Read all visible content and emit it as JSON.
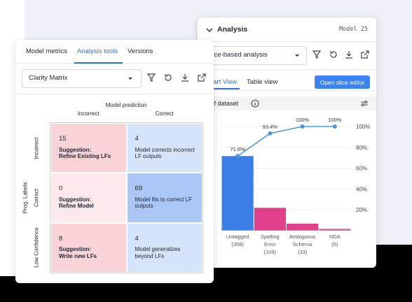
{
  "analysis_panel": {
    "title": "Analysis",
    "model": "Model 25",
    "dropdown": "Slice-based analysis",
    "tabs": [
      "Chart View",
      "Table view"
    ],
    "button": "Open slice editor",
    "metric": "% of dataset"
  },
  "chart_data": {
    "type": "combo",
    "categories": [
      [
        "Untagged",
        "(358)"
      ],
      [
        "Spelling",
        "Error",
        "(109)"
      ],
      [
        "Ambiguous",
        "Schema",
        "(33)"
      ],
      [
        "NDA",
        "(5)"
      ]
    ],
    "series": [
      {
        "type": "bar",
        "values": [
          71.6,
          21.8,
          6.6,
          1
        ],
        "colors": [
          "#3b7fe6",
          "#e03f8c",
          "#e03f8c",
          "#e03f8c"
        ]
      },
      {
        "type": "line",
        "values": [
          71.6,
          93.4,
          100,
          100
        ],
        "value_labels": [
          "71.6%",
          "93.4%",
          "100%",
          "100%"
        ],
        "color": "#4a97dd"
      }
    ],
    "ylim": [
      0,
      100
    ],
    "yticks": [
      {
        "value": 20,
        "label": "20%"
      },
      {
        "value": 40,
        "label": "40%"
      },
      {
        "value": 60,
        "label": "60%"
      },
      {
        "value": 80,
        "label": "80%"
      },
      {
        "value": 100,
        "label": "100%"
      }
    ],
    "grid": true
  },
  "matrix_card": {
    "tabs": [
      "Model metrics",
      "Analysis tools",
      "Versions"
    ],
    "dropdown": "Clarity Matrix",
    "x_title": "Model prediction",
    "columns": [
      "Incorrect",
      "Correct"
    ],
    "y_title": "Prog. Labels",
    "rows": [
      "Incorrect",
      "Correct",
      "Low Confidence"
    ],
    "cells": [
      [
        {
          "count": 15,
          "label": "Suggestion:",
          "text": "Refine Existing LFs"
        },
        {
          "count": 4,
          "text": "Model corrects incorrect LF outputs"
        }
      ],
      [
        {
          "count": 0,
          "label": "Suggestion:",
          "text": "Refine Model"
        },
        {
          "count": 69,
          "text": "Model fits to correct LF outputs"
        }
      ],
      [
        {
          "count": 8,
          "label": "Suggestion:",
          "text": "Write new LFs"
        },
        {
          "count": 4,
          "text": "Model generalizes beyond LFs"
        }
      ]
    ]
  }
}
